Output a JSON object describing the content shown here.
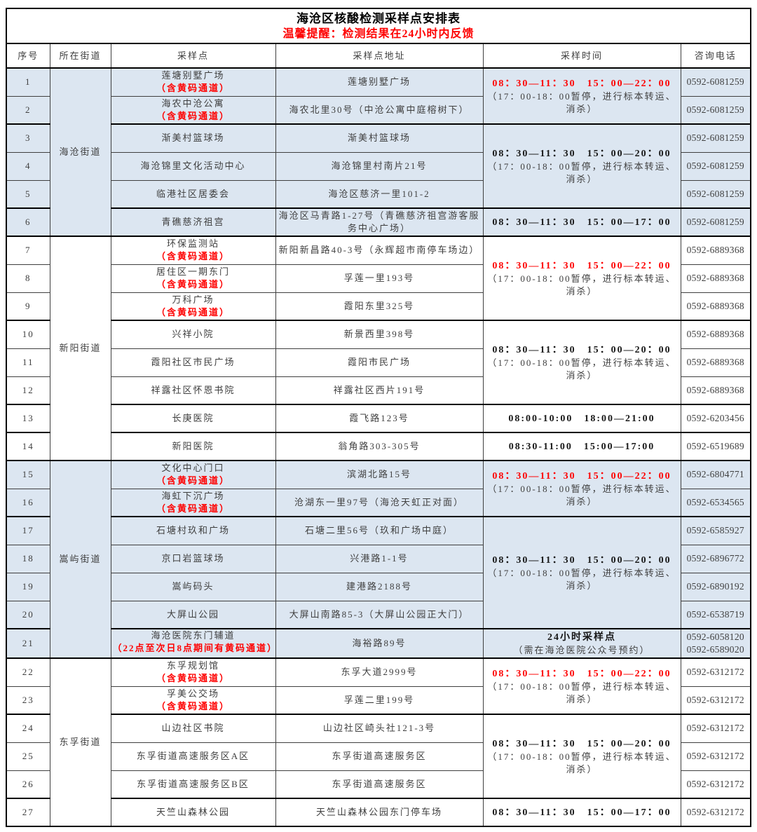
{
  "title": "海沧区核酸检测采样点安排表",
  "subtitle": "温馨提醒：检测结果在24小时内反馈",
  "columns": [
    "序号",
    "所在街道",
    "采样点",
    "采样点地址",
    "采样时间",
    "咨询电话"
  ],
  "colors": {
    "shaded_row_bg": "#dce6f1",
    "alert_red": "#fe0000",
    "border_dark": "#000000",
    "text_gray": "#3f3f3f"
  },
  "street_groups": [
    {
      "name": "海沧街道",
      "row_start": 1,
      "row_end": 6,
      "shaded": true
    },
    {
      "name": "新阳街道",
      "row_start": 7,
      "row_end": 14,
      "shaded": false
    },
    {
      "name": "嵩屿街道",
      "row_start": 15,
      "row_end": 21,
      "shaded": true
    },
    {
      "name": "东孚街道",
      "row_start": 22,
      "row_end": 27,
      "shaded": false
    }
  ],
  "time_groups": [
    {
      "rows": [
        1,
        2
      ],
      "time": "08：30—11：30　15：00—22：00",
      "time_color": "red",
      "note": "（17：00-18：00暂停，进行标本转运、消杀）"
    },
    {
      "rows": [
        3,
        4,
        5
      ],
      "time": "08：30—11：30　15：00—20：00",
      "time_color": "black",
      "note": "（17：00-18：00暂停，进行标本转运、消杀）"
    },
    {
      "rows": [
        6
      ],
      "time": "08：30—11：30　15：00—17：00",
      "time_color": "black",
      "note": ""
    },
    {
      "rows": [
        7,
        8,
        9
      ],
      "time": "08：30—11：30　15：00—22：00",
      "time_color": "red",
      "note": "（17：00-18：00暂停，进行标本转运、消杀）"
    },
    {
      "rows": [
        10,
        11,
        12
      ],
      "time": "08：30—11：30　15：00—20：00",
      "time_color": "black",
      "note": "（17：00-18：00暂停，进行标本转运、消杀）"
    },
    {
      "rows": [
        13
      ],
      "time": "08:00-10:00　18:00—21:00",
      "time_color": "black",
      "note": ""
    },
    {
      "rows": [
        14
      ],
      "time": "08:30-11:00　15:00—17:00",
      "time_color": "black",
      "note": ""
    },
    {
      "rows": [
        15,
        16
      ],
      "time": "08：30—11：30　15：00—22：00",
      "time_color": "red",
      "note": "（17：00-18：00暂停，进行标本转运、消杀）"
    },
    {
      "rows": [
        17,
        18,
        19,
        20
      ],
      "time": "08：30—11：30　15：00—20：00",
      "time_color": "black",
      "note": "（17：00-18：00暂停，进行标本转运、消杀）"
    },
    {
      "rows": [
        21
      ],
      "time": "24小时采样点",
      "time_color": "black",
      "note": "（需在海沧医院公众号预约）"
    },
    {
      "rows": [
        22,
        23
      ],
      "time": "08：30—11：30　15：00—22：00",
      "time_color": "red",
      "note": "（17：00-18：00暂停，进行标本转运、消杀）"
    },
    {
      "rows": [
        24,
        25,
        26
      ],
      "time": "08：30—11：30　15：00—20：00",
      "time_color": "black",
      "note": "（17：00-18：00暂停，进行标本转运、消杀）"
    },
    {
      "rows": [
        27
      ],
      "time": "08：30—11：30　15：00—17：00",
      "time_color": "black",
      "note": ""
    }
  ],
  "rows": [
    {
      "no": "1",
      "point": "莲塘别墅广场",
      "point_note": "（含黄码通道）",
      "address": "莲塘别墅广场",
      "phone": [
        "0592-6081259"
      ]
    },
    {
      "no": "2",
      "point": "海农中沧公寓",
      "point_note": "（含黄码通道）",
      "address": "海农北里30号（中沧公寓中庭榕树下）",
      "phone": [
        "0592-6081259"
      ]
    },
    {
      "no": "3",
      "point": "渐美村篮球场",
      "point_note": "",
      "address": "渐美村篮球场",
      "phone": [
        "0592-6081259"
      ]
    },
    {
      "no": "4",
      "point": "海沧锦里文化活动中心",
      "point_note": "",
      "address": "海沧锦里村南片21号",
      "phone": [
        "0592-6081259"
      ]
    },
    {
      "no": "5",
      "point": "临港社区居委会",
      "point_note": "",
      "address": "海沧区慈济一里101-2",
      "phone": [
        "0592-6081259"
      ]
    },
    {
      "no": "6",
      "point": "青礁慈济祖宫",
      "point_note": "",
      "address": "海沧区马青路1-27号（青礁慈济祖宫游客服务中心广场）",
      "phone": [
        "0592-6081259"
      ]
    },
    {
      "no": "7",
      "point": "环保监测站",
      "point_note": "（含黄码通道）",
      "address": "新阳新昌路40-3号（永辉超市南停车场边）",
      "phone": [
        "0592-6889368"
      ]
    },
    {
      "no": "8",
      "point": "居住区一期东门",
      "point_note": "（含黄码通道）",
      "address": "孚莲一里193号",
      "phone": [
        "0592-6889368"
      ]
    },
    {
      "no": "9",
      "point": "万科广场",
      "point_note": "（含黄码通道）",
      "address": "霞阳东里325号",
      "phone": [
        "0592-6889368"
      ]
    },
    {
      "no": "10",
      "point": "兴祥小院",
      "point_note": "",
      "address": "新景西里398号",
      "phone": [
        "0592-6889368"
      ]
    },
    {
      "no": "11",
      "point": "霞阳社区市民广场",
      "point_note": "",
      "address": "霞阳市民广场",
      "phone": [
        "0592-6889368"
      ]
    },
    {
      "no": "12",
      "point": "祥露社区怀恩书院",
      "point_note": "",
      "address": "祥露社区西片191号",
      "phone": [
        "0592-6889368"
      ]
    },
    {
      "no": "13",
      "point": "长庚医院",
      "point_note": "",
      "address": "霞飞路123号",
      "phone": [
        "0592-6203456"
      ]
    },
    {
      "no": "14",
      "point": "新阳医院",
      "point_note": "",
      "address": "翁角路303-305号",
      "phone": [
        "0592-6519689"
      ]
    },
    {
      "no": "15",
      "point": "文化中心门口",
      "point_note": "（含黄码通道）",
      "address": "滨湖北路15号",
      "phone": [
        "0592-6804771"
      ]
    },
    {
      "no": "16",
      "point": "海虹下沉广场",
      "point_note": "（含黄码通道）",
      "address": "沧湖东一里97号（海沧天虹正对面）",
      "phone": [
        "0592-6534565"
      ]
    },
    {
      "no": "17",
      "point": "石塘村玖和广场",
      "point_note": "",
      "address": "石塘二里56号（玖和广场中庭）",
      "phone": [
        "0592-6585927"
      ]
    },
    {
      "no": "18",
      "point": "京口岩篮球场",
      "point_note": "",
      "address": "兴港路1-1号",
      "phone": [
        "0592-6896772"
      ]
    },
    {
      "no": "19",
      "point": "嵩屿码头",
      "point_note": "",
      "address": "建港路2188号",
      "phone": [
        "0592-6890192"
      ]
    },
    {
      "no": "20",
      "point": "大屏山公园",
      "point_note": "",
      "address": "大屏山南路85-3（大屏山公园正大门）",
      "phone": [
        "0592-6538719"
      ]
    },
    {
      "no": "21",
      "point": "海沧医院东门辅道",
      "point_note": "（22点至次日8点期间有黄码通道）",
      "clip": true,
      "address": "海裕路89号",
      "phone": [
        "0592-6058120",
        "0592-6589020"
      ]
    },
    {
      "no": "22",
      "point": "东孚规划馆",
      "point_note": "（含黄码通道）",
      "address": "东孚大道2999号",
      "phone": [
        "0592-6312172"
      ]
    },
    {
      "no": "23",
      "point": "孚美公交场",
      "point_note": "（含黄码通道）",
      "address": "孚莲二里199号",
      "phone": [
        "0592-6312172"
      ]
    },
    {
      "no": "24",
      "point": "山边社区书院",
      "point_note": "",
      "address": "山边社区崎头社121-3号",
      "phone": [
        "0592-6312172"
      ]
    },
    {
      "no": "25",
      "point": "东孚街道高速服务区A区",
      "point_note": "",
      "address": "东孚街道高速服务区",
      "phone": [
        "0592-6312172"
      ]
    },
    {
      "no": "26",
      "point": "东孚街道高速服务区B区",
      "point_note": "",
      "address": "东孚街道高速服务区",
      "phone": [
        "0592-6312172"
      ]
    },
    {
      "no": "27",
      "point": "天竺山森林公园",
      "point_note": "",
      "address": "天竺山森林公园东门停车场",
      "phone": [
        "0592-6312172"
      ]
    }
  ]
}
